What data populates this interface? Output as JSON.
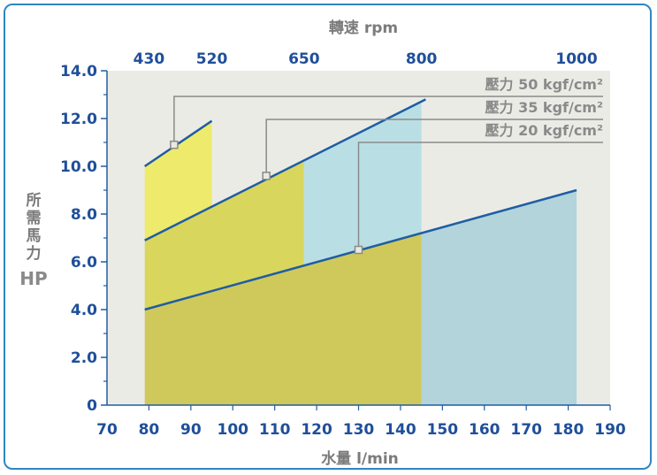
{
  "chart_data": {
    "type": "area",
    "ylabel_chars": [
      "所",
      "需",
      "馬",
      "力"
    ],
    "ylabel_unit": "HP",
    "xlabel": "水量 l/min",
    "top_axis_label": "轉速 rpm",
    "top_ticks": [
      {
        "label": "430",
        "x": 80
      },
      {
        "label": "520",
        "x": 95
      },
      {
        "label": "650",
        "x": 117
      },
      {
        "label": "800",
        "x": 145
      },
      {
        "label": "1000",
        "x": 182
      }
    ],
    "xlim": [
      70,
      190
    ],
    "ylim": [
      0,
      14
    ],
    "xticks": [
      "70",
      "80",
      "90",
      "100",
      "110",
      "120",
      "130",
      "140",
      "150",
      "160",
      "170",
      "180",
      "190"
    ],
    "yticks": [
      "0",
      "2.0",
      "4.0",
      "6.0",
      "8.0",
      "10.0",
      "12.0",
      "14.0"
    ],
    "series": [
      {
        "name": "壓力 50 kgf/cm²",
        "x": [
          79,
          95
        ],
        "y": [
          10.0,
          11.9
        ],
        "fill_to": 95,
        "marker": {
          "x": 86,
          "y": 10.9
        }
      },
      {
        "name": "壓力 35 kgf/cm²",
        "x": [
          79,
          146
        ],
        "y": [
          6.9,
          12.8
        ],
        "fill_to": 146,
        "marker": {
          "x": 108,
          "y": 9.6
        }
      },
      {
        "name": "壓力 20 kgf/cm²",
        "x": [
          79,
          182
        ],
        "y": [
          4.0,
          9.0
        ],
        "fill_to": 182,
        "marker": {
          "x": 130,
          "y": 6.5
        }
      }
    ],
    "colors": {
      "plot_bg": "#ebebe6",
      "yellow_light": "#eeea6b",
      "yellow_mid": "#d9d65e",
      "yellow_dark": "#cfc95c",
      "blue_light": "#b9dfe4",
      "blue_dark": "#b2d4da",
      "line": "#1f5da3",
      "leader": "#8a8a8a"
    }
  }
}
